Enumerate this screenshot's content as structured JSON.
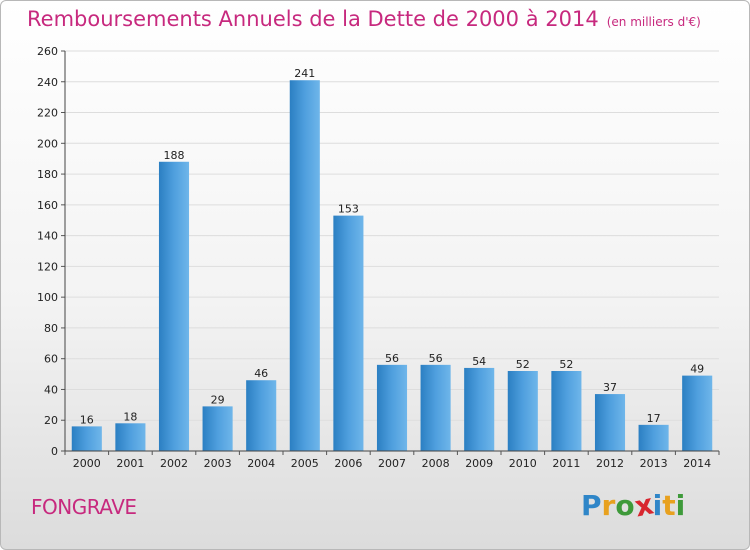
{
  "header": {
    "title": "Remboursements Annuels de la Dette de 2000 à 2014",
    "unit": "(en milliers d'€)"
  },
  "footer": {
    "commune": "FONGRAVE",
    "logo_letters": [
      "P",
      "r",
      "o",
      "x",
      "i",
      "t",
      "i"
    ],
    "logo_colors": [
      "#2f86c8",
      "#e8a11f",
      "#3e9a3a",
      "#d8262f",
      "#2f86c8",
      "#e8a11f",
      "#3e9a3a"
    ]
  },
  "colors": {
    "accent": "#c7297e",
    "bar_light": "#6fb6ea",
    "bar_dark": "#2b7fc2",
    "text": "#222222",
    "grid": "#dddddd"
  },
  "chart_data": {
    "type": "bar",
    "categories": [
      "2000",
      "2001",
      "2002",
      "2003",
      "2004",
      "2005",
      "2006",
      "2007",
      "2008",
      "2009",
      "2010",
      "2011",
      "2012",
      "2013",
      "2014"
    ],
    "values": [
      16,
      18,
      188,
      29,
      46,
      241,
      153,
      56,
      56,
      54,
      52,
      52,
      37,
      17,
      49
    ],
    "ylim": [
      0,
      260
    ],
    "yticks": [
      0,
      20,
      40,
      60,
      80,
      100,
      120,
      140,
      160,
      180,
      200,
      220,
      240,
      260
    ],
    "grid": "horizontal",
    "title": "Remboursements Annuels de la Dette de 2000 à 2014",
    "xlabel": "",
    "ylabel": ""
  }
}
